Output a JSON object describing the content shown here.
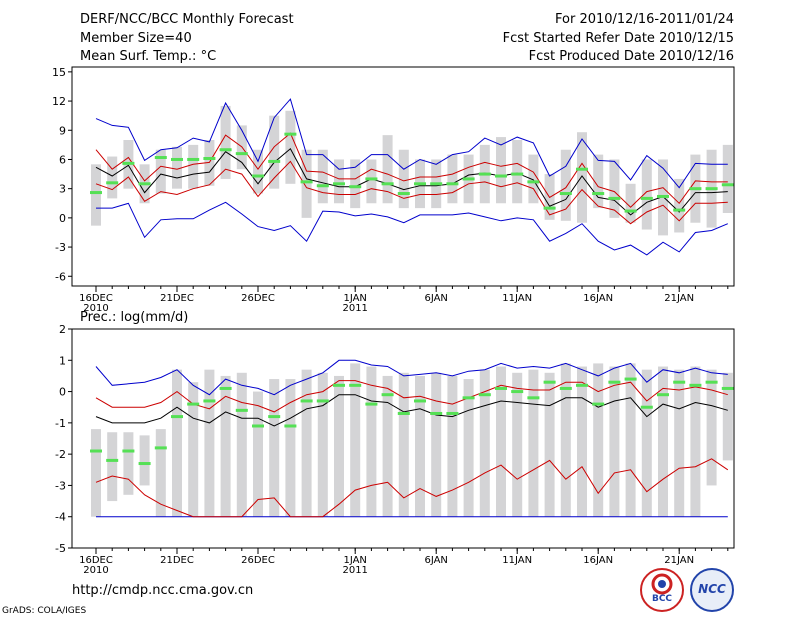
{
  "header": {
    "title": "DERF/NCC/BCC Monthly Forecast",
    "member_size": "Member Size=40",
    "variable": "Mean Surf. Temp.: °C",
    "period": "For 2010/12/16-2011/01/24",
    "start_date": "Fcst Started Refer Date 2010/12/15",
    "produced_date": "Fcst Produced Date 2010/12/16"
  },
  "footer": {
    "url": "http://cmdp.ncc.cma.gov.cn",
    "credit": "GrADS: COLA/IGES",
    "logo_left": "BCC",
    "logo_right": "NCC"
  },
  "colors": {
    "box": "#d4d4d6",
    "median": "#55e055",
    "envelope": "#0000cc",
    "spread": "#cc0000",
    "mean": "#000000"
  },
  "chart_data": [
    {
      "type": "box",
      "title": "Mean Surf. Temp.: °C",
      "ylabel": "Mean Surf. Temp.: °C",
      "ylim": [
        -7,
        15.5
      ],
      "yticks": [
        "15",
        "12",
        "9",
        "6",
        "3",
        "0",
        "-3",
        "-6"
      ],
      "ytick_values": [
        15,
        12,
        9,
        6,
        3,
        0,
        -3,
        -6
      ],
      "xticks": [
        {
          "day": 1,
          "label": "16DEC",
          "sub": "2010"
        },
        {
          "day": 6,
          "label": "21DEC",
          "sub": ""
        },
        {
          "day": 11,
          "label": "26DEC",
          "sub": ""
        },
        {
          "day": 17,
          "label": "1JAN",
          "sub": "2011"
        },
        {
          "day": 22,
          "label": "6JAN",
          "sub": ""
        },
        {
          "day": 27,
          "label": "11JAN",
          "sub": ""
        },
        {
          "day": 32,
          "label": "16JAN",
          "sub": ""
        },
        {
          "day": 37,
          "label": "21JAN",
          "sub": ""
        }
      ],
      "days": 40,
      "box_low": [
        -0.8,
        2.0,
        3.0,
        1.5,
        2.5,
        3.0,
        3.0,
        3.3,
        4.0,
        5.0,
        2.5,
        3.0,
        3.5,
        0.0,
        1.5,
        1.5,
        1.0,
        1.5,
        1.5,
        1.0,
        1.0,
        1.0,
        1.5,
        1.5,
        1.5,
        1.5,
        1.5,
        1.5,
        -0.2,
        -0.3,
        -0.5,
        1.0,
        0.0,
        -0.5,
        -1.2,
        -1.8,
        -1.5,
        -0.5,
        -1.0,
        0.5
      ],
      "box_high": [
        5.5,
        6.3,
        8.0,
        5.5,
        7.0,
        7.3,
        7.5,
        8.0,
        11.5,
        9.5,
        7.0,
        10.5,
        11.0,
        7.0,
        7.0,
        6.0,
        6.0,
        6.0,
        8.5,
        7.0,
        6.0,
        6.0,
        6.5,
        6.5,
        7.5,
        8.3,
        8.0,
        6.5,
        4.5,
        7.0,
        8.8,
        6.5,
        6.0,
        3.5,
        6.0,
        6.0,
        4.0,
        6.5,
        7.0,
        7.5
      ],
      "median": [
        2.6,
        3.6,
        5.6,
        3.5,
        6.2,
        6.0,
        6.0,
        6.1,
        7.0,
        6.6,
        4.3,
        5.8,
        8.6,
        3.7,
        3.3,
        3.5,
        3.2,
        4.0,
        3.5,
        2.5,
        3.5,
        3.5,
        3.5,
        4.0,
        4.5,
        4.3,
        4.5,
        3.7,
        1.0,
        2.5,
        5.0,
        2.5,
        2.0,
        0.7,
        2.0,
        2.2,
        0.8,
        3.0,
        3.0,
        3.4
      ],
      "blue_high": [
        10.2,
        9.5,
        9.3,
        5.9,
        7.0,
        7.2,
        8.2,
        7.8,
        11.8,
        9.0,
        5.8,
        10.3,
        12.2,
        6.5,
        6.5,
        5.0,
        5.2,
        6.5,
        6.5,
        5.0,
        6.0,
        5.5,
        6.5,
        6.8,
        8.2,
        7.5,
        8.3,
        7.7,
        4.3,
        5.3,
        8.1,
        5.9,
        5.8,
        3.9,
        6.4,
        5.1,
        3.1,
        5.6,
        5.5,
        5.5
      ],
      "red_high": [
        7.0,
        5.0,
        6.2,
        3.8,
        5.3,
        5.0,
        5.5,
        5.7,
        8.5,
        7.3,
        5.0,
        7.3,
        8.7,
        4.8,
        4.7,
        4.0,
        4.0,
        5.0,
        4.5,
        3.8,
        4.2,
        4.2,
        4.5,
        5.2,
        5.7,
        5.3,
        5.6,
        4.7,
        2.1,
        3.1,
        5.6,
        3.2,
        2.7,
        1.1,
        2.7,
        3.1,
        1.5,
        3.8,
        3.7,
        3.7
      ],
      "mean": [
        5.2,
        4.3,
        5.4,
        2.6,
        4.5,
        4.1,
        4.5,
        4.7,
        6.8,
        5.7,
        3.5,
        5.7,
        7.1,
        4.0,
        3.6,
        3.2,
        3.2,
        4.0,
        3.5,
        2.9,
        3.3,
        3.3,
        3.5,
        4.4,
        4.6,
        4.3,
        4.6,
        3.9,
        1.2,
        1.9,
        4.3,
        2.1,
        1.8,
        0.3,
        1.6,
        2.2,
        0.6,
        2.6,
        2.6,
        2.7
      ],
      "red_low": [
        3.5,
        2.9,
        4.2,
        1.7,
        2.7,
        2.4,
        3.0,
        3.4,
        5.0,
        4.5,
        2.2,
        4.1,
        5.8,
        3.1,
        2.6,
        2.4,
        2.4,
        3.0,
        2.7,
        2.0,
        2.4,
        2.4,
        2.6,
        3.5,
        3.7,
        3.2,
        3.6,
        3.0,
        0.3,
        0.9,
        2.9,
        1.2,
        0.8,
        -0.6,
        0.6,
        1.3,
        -0.3,
        1.5,
        1.5,
        1.6
      ],
      "blue_low": [
        1.0,
        1.0,
        1.5,
        -2.0,
        -0.2,
        -0.1,
        -0.1,
        0.8,
        1.6,
        0.4,
        -0.9,
        -1.3,
        -0.8,
        -2.4,
        0.7,
        0.6,
        0.2,
        0.4,
        0.1,
        -0.5,
        0.3,
        0.3,
        0.3,
        0.5,
        0.1,
        -0.3,
        0.0,
        -0.2,
        -2.4,
        -1.6,
        -0.6,
        -2.4,
        -3.3,
        -2.8,
        -3.8,
        -2.5,
        -3.5,
        -1.5,
        -1.3,
        -0.6
      ]
    },
    {
      "type": "box",
      "title": "Prec.: log(mm/d)",
      "ylabel": "Prec.: log(mm/d)",
      "ylim": [
        -5,
        2
      ],
      "yticks": [
        "2",
        "1",
        "0",
        "-1",
        "-2",
        "-3",
        "-4",
        "-5"
      ],
      "ytick_values": [
        2,
        1,
        0,
        -1,
        -2,
        -3,
        -4,
        -5
      ],
      "xticks": [
        {
          "day": 1,
          "label": "16DEC",
          "sub": "2010"
        },
        {
          "day": 6,
          "label": "21DEC",
          "sub": ""
        },
        {
          "day": 11,
          "label": "26DEC",
          "sub": ""
        },
        {
          "day": 17,
          "label": "1JAN",
          "sub": "2011"
        },
        {
          "day": 22,
          "label": "6JAN",
          "sub": ""
        },
        {
          "day": 27,
          "label": "11JAN",
          "sub": ""
        },
        {
          "day": 32,
          "label": "16JAN",
          "sub": ""
        },
        {
          "day": 37,
          "label": "21JAN",
          "sub": ""
        }
      ],
      "days": 40,
      "box_low": [
        -4.0,
        -3.5,
        -3.3,
        -3.0,
        -4.0,
        -4.0,
        -4.0,
        -4.0,
        -4.0,
        -4.0,
        -4.0,
        -4.0,
        -4.0,
        -4.0,
        -4.0,
        -4.0,
        -4.0,
        -4.0,
        -4.0,
        -4.0,
        -4.0,
        -4.0,
        -4.0,
        -4.0,
        -4.0,
        -4.0,
        -4.0,
        -4.0,
        -4.0,
        -4.0,
        -4.0,
        -4.0,
        -4.0,
        -4.0,
        -4.0,
        -4.0,
        -4.0,
        -4.0,
        -3.0,
        -2.2
      ],
      "box_high": [
        -1.2,
        -1.3,
        -1.3,
        -1.4,
        -1.2,
        0.7,
        0.3,
        0.7,
        0.5,
        0.6,
        0.0,
        0.4,
        0.4,
        0.7,
        0.6,
        0.5,
        0.9,
        0.8,
        0.5,
        0.6,
        0.5,
        0.6,
        0.5,
        0.4,
        0.7,
        0.8,
        0.6,
        0.7,
        0.6,
        0.9,
        0.8,
        0.9,
        0.8,
        0.9,
        0.7,
        0.8,
        0.7,
        0.8,
        0.7,
        0.6
      ],
      "median": [
        -1.9,
        -2.2,
        -1.9,
        -2.3,
        -1.8,
        -0.8,
        -0.4,
        -0.3,
        0.1,
        -0.6,
        -1.1,
        -0.8,
        -1.1,
        -0.3,
        -0.3,
        0.2,
        0.2,
        -0.4,
        -0.1,
        -0.7,
        -0.3,
        -0.7,
        -0.7,
        -0.2,
        -0.1,
        0.1,
        0.0,
        -0.2,
        0.3,
        0.1,
        0.2,
        -0.4,
        0.3,
        0.4,
        -0.5,
        -0.1,
        0.3,
        0.2,
        0.3,
        0.1
      ],
      "blue_high": [
        0.8,
        0.2,
        0.25,
        0.3,
        0.45,
        0.7,
        0.2,
        -0.1,
        0.4,
        0.2,
        0.1,
        -0.1,
        0.2,
        0.4,
        0.6,
        1.0,
        1.0,
        0.85,
        0.8,
        0.5,
        0.55,
        0.6,
        0.5,
        0.65,
        0.7,
        0.9,
        0.75,
        0.8,
        0.75,
        0.9,
        0.7,
        0.5,
        0.75,
        0.9,
        0.3,
        0.7,
        0.6,
        0.75,
        0.6,
        0.55
      ],
      "red_high": [
        -0.2,
        -0.5,
        -0.5,
        -0.5,
        -0.35,
        0.0,
        -0.4,
        -0.55,
        -0.15,
        -0.35,
        -0.45,
        -0.65,
        -0.35,
        -0.1,
        0.0,
        0.35,
        0.35,
        0.2,
        0.1,
        -0.2,
        -0.15,
        -0.3,
        -0.4,
        -0.2,
        0.0,
        0.2,
        0.1,
        0.05,
        0.05,
        0.3,
        0.3,
        0.0,
        0.2,
        0.3,
        -0.3,
        0.1,
        0.05,
        0.15,
        0.05,
        -0.1
      ],
      "mean": [
        -0.8,
        -1.0,
        -1.0,
        -1.0,
        -0.85,
        -0.5,
        -0.85,
        -1.0,
        -0.65,
        -0.85,
        -0.85,
        -1.1,
        -0.85,
        -0.55,
        -0.45,
        -0.1,
        -0.1,
        -0.3,
        -0.35,
        -0.65,
        -0.55,
        -0.75,
        -0.8,
        -0.6,
        -0.45,
        -0.3,
        -0.35,
        -0.4,
        -0.45,
        -0.2,
        -0.2,
        -0.5,
        -0.3,
        -0.2,
        -0.8,
        -0.4,
        -0.55,
        -0.35,
        -0.45,
        -0.6
      ],
      "red_low": [
        -2.9,
        -2.7,
        -2.8,
        -3.3,
        -3.6,
        -3.8,
        -4.0,
        -4.0,
        -4.0,
        -4.0,
        -3.45,
        -3.4,
        -4.0,
        -4.0,
        -4.0,
        -3.6,
        -3.15,
        -3.0,
        -2.9,
        -3.4,
        -3.1,
        -3.35,
        -3.15,
        -2.9,
        -2.6,
        -2.35,
        -2.8,
        -2.5,
        -2.2,
        -2.8,
        -2.4,
        -3.25,
        -2.6,
        -2.5,
        -3.2,
        -2.8,
        -2.45,
        -2.4,
        -2.15,
        -2.5
      ],
      "blue_low": [
        -4.0,
        -4.0,
        -4.0,
        -4.0,
        -4.0,
        -4.0,
        -4.0,
        -4.0,
        -4.0,
        -4.0,
        -4.0,
        -4.0,
        -4.0,
        -4.0,
        -4.0,
        -4.0,
        -4.0,
        -4.0,
        -4.0,
        -4.0,
        -4.0,
        -4.0,
        -4.0,
        -4.0,
        -4.0,
        -4.0,
        -4.0,
        -4.0,
        -4.0,
        -4.0,
        -4.0,
        -4.0,
        -4.0,
        -4.0,
        -4.0,
        -4.0,
        -4.0,
        -4.0,
        -4.0,
        -4.0
      ]
    }
  ]
}
